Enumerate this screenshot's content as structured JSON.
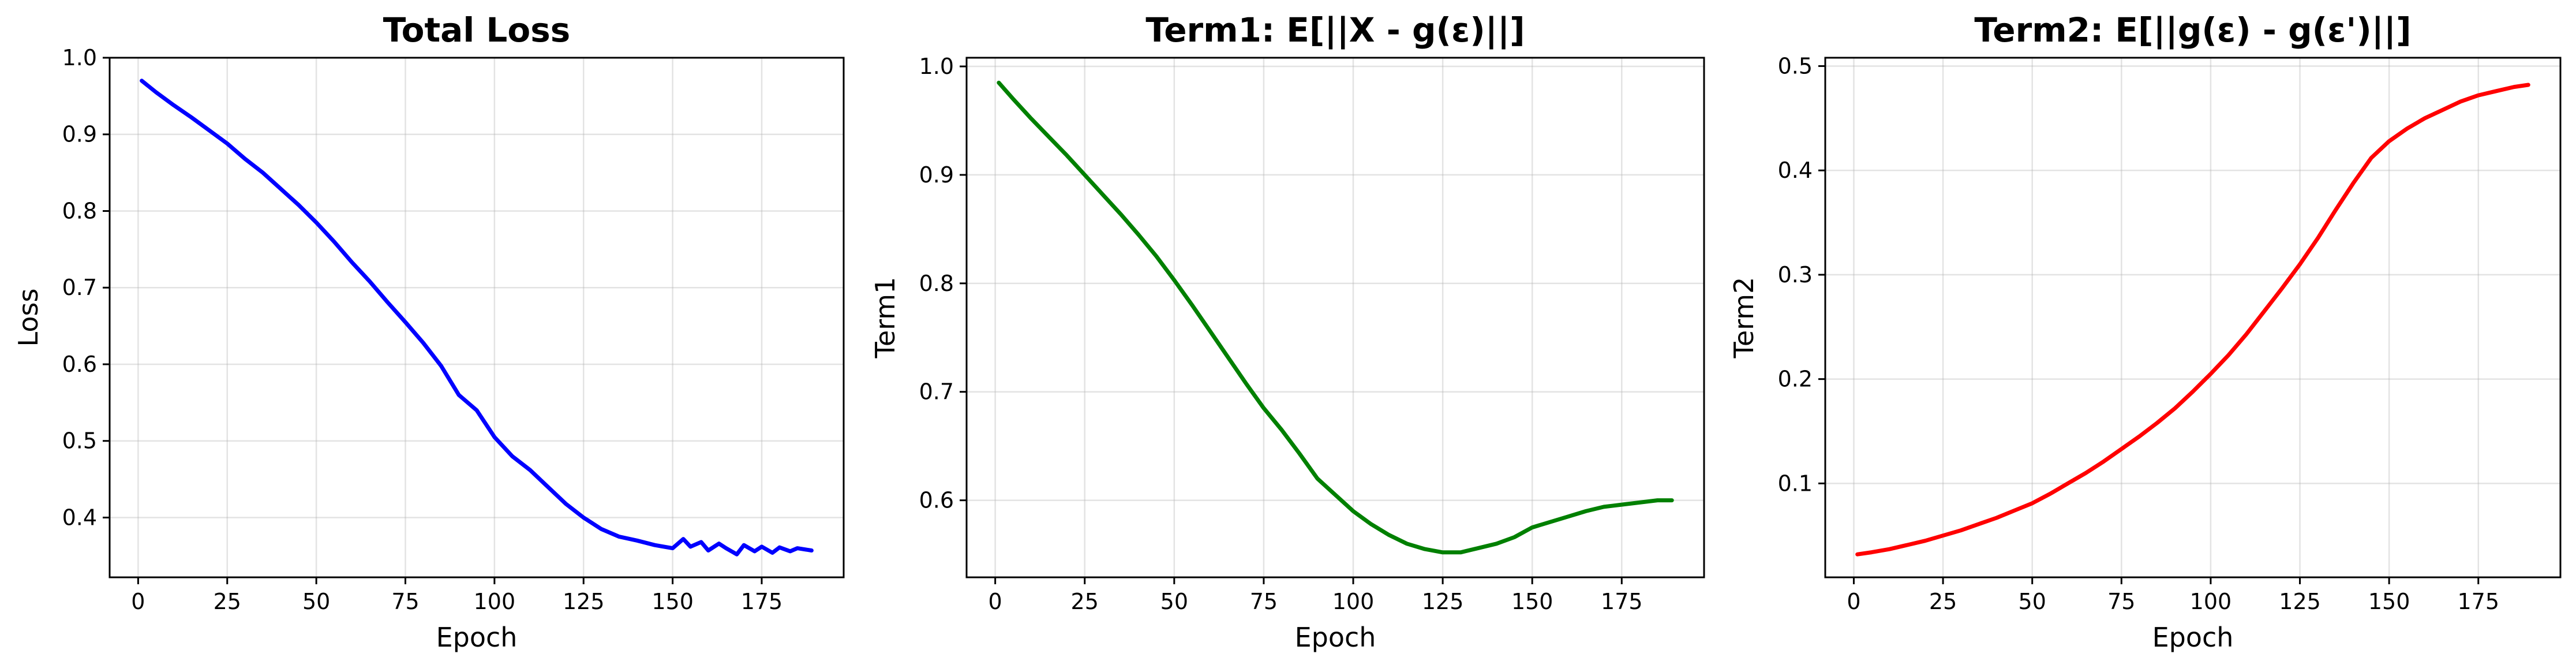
{
  "chart_data": [
    {
      "type": "line",
      "title": "Total Loss",
      "xlabel": "Epoch",
      "ylabel": "Loss",
      "xlim": [
        -8,
        198
      ],
      "ylim": [
        0.322,
        1.0
      ],
      "xticks": [
        0,
        25,
        50,
        75,
        100,
        125,
        150,
        175
      ],
      "yticks": [
        0.4,
        0.5,
        0.6,
        0.7,
        0.8,
        0.9,
        1.0
      ],
      "grid": true,
      "color": "#0000ff",
      "series": [
        {
          "x": [
            1,
            5,
            10,
            15,
            20,
            25,
            30,
            35,
            40,
            45,
            50,
            55,
            60,
            65,
            70,
            75,
            80,
            85,
            90,
            95,
            100,
            105,
            110,
            115,
            120,
            125,
            130,
            135,
            140,
            145,
            150,
            153,
            155,
            158,
            160,
            163,
            165,
            168,
            170,
            173,
            175,
            178,
            180,
            183,
            185,
            189
          ],
          "y": [
            0.97,
            0.955,
            0.938,
            0.922,
            0.905,
            0.888,
            0.868,
            0.85,
            0.829,
            0.808,
            0.785,
            0.76,
            0.733,
            0.708,
            0.681,
            0.655,
            0.628,
            0.598,
            0.56,
            0.54,
            0.505,
            0.48,
            0.462,
            0.44,
            0.418,
            0.4,
            0.385,
            0.375,
            0.37,
            0.364,
            0.36,
            0.372,
            0.362,
            0.368,
            0.357,
            0.366,
            0.36,
            0.352,
            0.364,
            0.356,
            0.362,
            0.354,
            0.361,
            0.356,
            0.36,
            0.357
          ]
        }
      ]
    },
    {
      "type": "line",
      "title": "Term1: E[||X - g(ε)||]",
      "xlabel": "Epoch",
      "ylabel": "Term1",
      "xlim": [
        -8,
        198
      ],
      "ylim": [
        0.529,
        1.008
      ],
      "xticks": [
        0,
        25,
        50,
        75,
        100,
        125,
        150,
        175
      ],
      "yticks": [
        0.6,
        0.7,
        0.8,
        0.9,
        1.0
      ],
      "grid": true,
      "color": "#008000",
      "series": [
        {
          "x": [
            1,
            5,
            10,
            15,
            20,
            25,
            30,
            35,
            40,
            45,
            50,
            55,
            60,
            65,
            70,
            75,
            80,
            85,
            90,
            95,
            100,
            105,
            110,
            115,
            120,
            125,
            130,
            135,
            140,
            145,
            150,
            155,
            160,
            165,
            170,
            175,
            180,
            185,
            189
          ],
          "y": [
            0.985,
            0.97,
            0.952,
            0.935,
            0.918,
            0.9,
            0.882,
            0.864,
            0.845,
            0.825,
            0.803,
            0.78,
            0.756,
            0.732,
            0.708,
            0.685,
            0.665,
            0.643,
            0.62,
            0.605,
            0.59,
            0.578,
            0.568,
            0.56,
            0.555,
            0.552,
            0.552,
            0.556,
            0.56,
            0.566,
            0.575,
            0.58,
            0.585,
            0.59,
            0.594,
            0.596,
            0.598,
            0.6,
            0.6
          ]
        }
      ]
    },
    {
      "type": "line",
      "title": "Term2: E[||g(ε) - g(ε')||]",
      "xlabel": "Epoch",
      "ylabel": "Term2",
      "xlim": [
        -8,
        198
      ],
      "ylim": [
        0.01,
        0.508
      ],
      "xticks": [
        0,
        25,
        50,
        75,
        100,
        125,
        150,
        175
      ],
      "yticks": [
        0.1,
        0.2,
        0.3,
        0.4,
        0.5
      ],
      "grid": true,
      "color": "#ff0000",
      "series": [
        {
          "x": [
            1,
            5,
            10,
            15,
            20,
            25,
            30,
            35,
            40,
            45,
            50,
            55,
            60,
            65,
            70,
            75,
            80,
            85,
            90,
            95,
            100,
            105,
            110,
            115,
            120,
            125,
            130,
            135,
            140,
            145,
            150,
            155,
            160,
            165,
            170,
            175,
            180,
            185,
            189
          ],
          "y": [
            0.032,
            0.034,
            0.037,
            0.041,
            0.045,
            0.05,
            0.055,
            0.061,
            0.067,
            0.074,
            0.081,
            0.09,
            0.1,
            0.11,
            0.121,
            0.133,
            0.145,
            0.158,
            0.172,
            0.188,
            0.205,
            0.223,
            0.243,
            0.265,
            0.287,
            0.31,
            0.335,
            0.362,
            0.388,
            0.412,
            0.428,
            0.44,
            0.45,
            0.458,
            0.466,
            0.472,
            0.476,
            0.48,
            0.482
          ]
        }
      ]
    }
  ]
}
